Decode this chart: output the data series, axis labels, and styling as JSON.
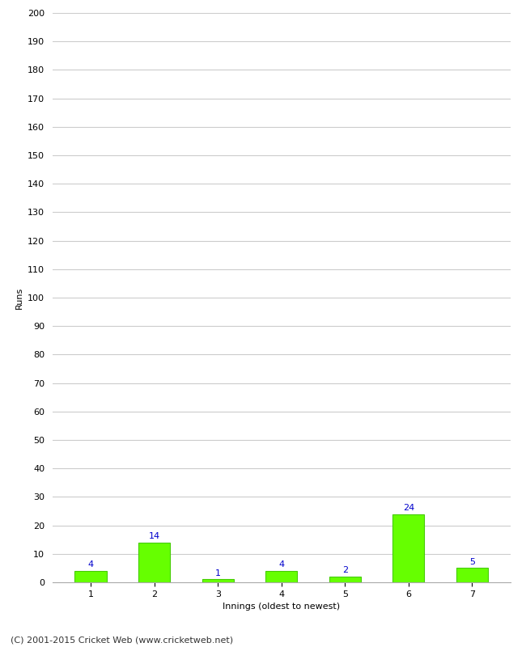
{
  "xlabel": "Innings (oldest to newest)",
  "ylabel": "Runs",
  "categories": [
    "1",
    "2",
    "3",
    "4",
    "5",
    "6",
    "7"
  ],
  "values": [
    4,
    14,
    1,
    4,
    2,
    24,
    5
  ],
  "bar_color": "#66ff00",
  "bar_edge_color": "#44cc00",
  "label_color": "#0000cc",
  "ylim": [
    0,
    200
  ],
  "yticks": [
    0,
    10,
    20,
    30,
    40,
    50,
    60,
    70,
    80,
    90,
    100,
    110,
    120,
    130,
    140,
    150,
    160,
    170,
    180,
    190,
    200
  ],
  "ytick_labels": [
    "0",
    "10",
    "20",
    "30",
    "40",
    "50",
    "60",
    "70",
    "80",
    "90",
    "100",
    "110",
    "120",
    "130",
    "140",
    "150",
    "160",
    "170",
    "180",
    "190",
    "200"
  ],
  "background_color": "#ffffff",
  "grid_color": "#cccccc",
  "footer_text": "(C) 2001-2015 Cricket Web (www.cricketweb.net)",
  "label_fontsize": 8,
  "axis_fontsize": 8,
  "footer_fontsize": 8,
  "bar_width": 0.5
}
